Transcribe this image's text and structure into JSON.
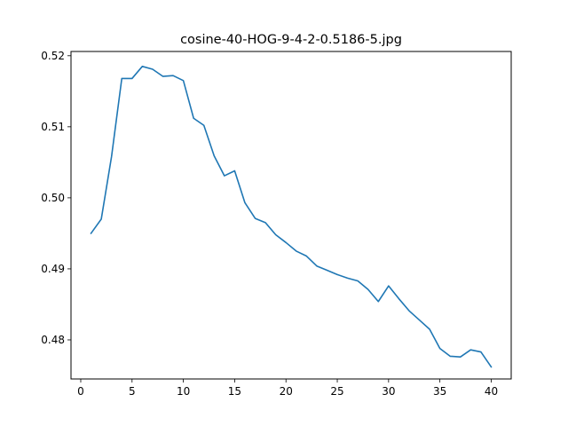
{
  "chart_data": {
    "type": "line",
    "title": "cosine-40-HOG-9-4-2-0.5186-5.jpg",
    "xlabel": "",
    "ylabel": "",
    "xlim": [
      -0.95,
      41.95
    ],
    "ylim": [
      0.4745,
      0.5206
    ],
    "xticks": [
      0,
      5,
      10,
      15,
      20,
      25,
      30,
      35,
      40
    ],
    "yticks": [
      0.48,
      0.49,
      0.5,
      0.51,
      0.52
    ],
    "ytick_labels": [
      "0.48",
      "0.49",
      "0.50",
      "0.51",
      "0.52"
    ],
    "grid": false,
    "series": [
      {
        "color": "#1f77b4",
        "x": [
          1,
          2,
          3,
          4,
          5,
          6,
          7,
          8,
          9,
          10,
          11,
          12,
          13,
          14,
          15,
          16,
          17,
          18,
          19,
          20,
          21,
          22,
          23,
          24,
          25,
          26,
          27,
          28,
          29,
          30,
          31,
          32,
          33,
          34,
          35,
          36,
          37,
          38,
          39,
          40
        ],
        "y": [
          0.495,
          0.497,
          0.5058,
          0.5168,
          0.5168,
          0.5185,
          0.5181,
          0.5171,
          0.5172,
          0.5165,
          0.5112,
          0.5102,
          0.5059,
          0.5031,
          0.5038,
          0.4993,
          0.4971,
          0.4965,
          0.4948,
          0.4937,
          0.4925,
          0.4918,
          0.4904,
          0.4898,
          0.4892,
          0.4887,
          0.4883,
          0.4871,
          0.4854,
          0.4876,
          0.4858,
          0.4841,
          0.4828,
          0.4815,
          0.4788,
          0.4777,
          0.4776,
          0.4786,
          0.4783,
          0.4762
        ]
      }
    ]
  }
}
